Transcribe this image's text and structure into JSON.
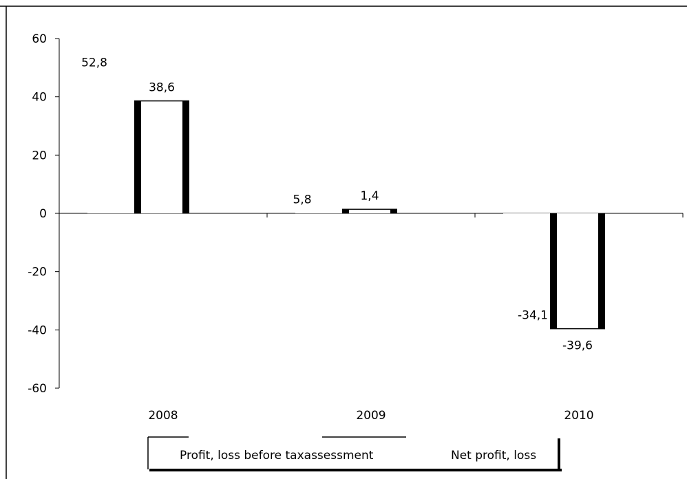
{
  "chart_data": {
    "type": "bar",
    "categories": [
      "2008",
      "2009",
      "2010"
    ],
    "series": [
      {
        "name": "Profit, loss before taxassessment",
        "values": [
          52.8,
          5.8,
          -34.1
        ],
        "labels": [
          "52,8",
          "5,8",
          "-34,1"
        ],
        "color": "#ffffff"
      },
      {
        "name": "Net profit, loss",
        "values": [
          38.6,
          1.4,
          -39.6
        ],
        "labels": [
          "38,6",
          "1,4",
          "-39,6"
        ],
        "color": "#ffffff"
      }
    ],
    "y_ticks": [
      "60",
      "40",
      "20",
      "0",
      "-20",
      "-40",
      "-60"
    ],
    "ylim": [
      -60,
      60
    ],
    "legend_position": "bottom",
    "grid": false
  }
}
